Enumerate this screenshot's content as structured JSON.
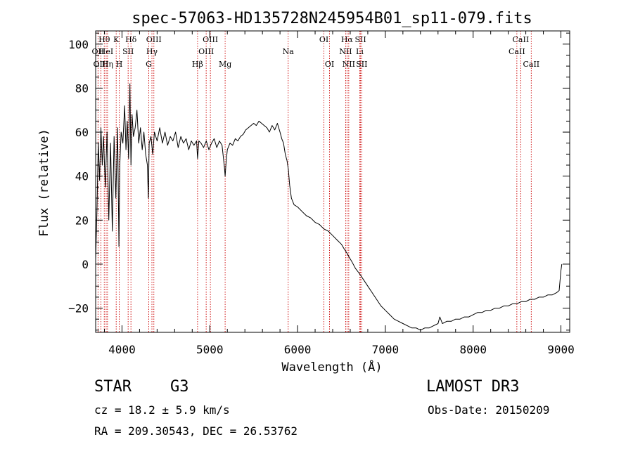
{
  "chart_data": {
    "type": "line",
    "title": "spec-57063-HD135728N245954B01_sp11-079.fits",
    "xlabel": "Wavelength (Å)",
    "ylabel": "Flux (relative)",
    "xlim": [
      3700,
      9100
    ],
    "ylim": [
      -31,
      106
    ],
    "xticks": [
      4000,
      5000,
      6000,
      7000,
      8000,
      9000
    ],
    "xticks_minor_step": 200,
    "yticks": [
      -20,
      0,
      20,
      40,
      60,
      80,
      100
    ],
    "yticks_minor_step": 5,
    "series": [
      {
        "name": "spectrum",
        "points": [
          [
            3700,
            2
          ],
          [
            3715,
            25
          ],
          [
            3730,
            55
          ],
          [
            3745,
            38
          ],
          [
            3760,
            62
          ],
          [
            3775,
            45
          ],
          [
            3790,
            58
          ],
          [
            3810,
            35
          ],
          [
            3830,
            60
          ],
          [
            3850,
            20
          ],
          [
            3870,
            55
          ],
          [
            3890,
            15
          ],
          [
            3910,
            58
          ],
          [
            3930,
            30
          ],
          [
            3950,
            62
          ],
          [
            3965,
            8
          ],
          [
            3975,
            45
          ],
          [
            3990,
            60
          ],
          [
            4010,
            55
          ],
          [
            4030,
            72
          ],
          [
            4045,
            52
          ],
          [
            4060,
            65
          ],
          [
            4075,
            48
          ],
          [
            4090,
            82
          ],
          [
            4102,
            45
          ],
          [
            4115,
            68
          ],
          [
            4130,
            58
          ],
          [
            4150,
            62
          ],
          [
            4170,
            70
          ],
          [
            4190,
            55
          ],
          [
            4210,
            62
          ],
          [
            4230,
            52
          ],
          [
            4250,
            60
          ],
          [
            4270,
            50
          ],
          [
            4290,
            45
          ],
          [
            4300,
            30
          ],
          [
            4310,
            55
          ],
          [
            4330,
            58
          ],
          [
            4350,
            50
          ],
          [
            4370,
            60
          ],
          [
            4400,
            56
          ],
          [
            4430,
            62
          ],
          [
            4460,
            55
          ],
          [
            4490,
            60
          ],
          [
            4520,
            54
          ],
          [
            4550,
            58
          ],
          [
            4580,
            56
          ],
          [
            4610,
            60
          ],
          [
            4640,
            53
          ],
          [
            4670,
            58
          ],
          [
            4700,
            55
          ],
          [
            4730,
            57
          ],
          [
            4760,
            52
          ],
          [
            4790,
            56
          ],
          [
            4820,
            54
          ],
          [
            4850,
            56
          ],
          [
            4861,
            48
          ],
          [
            4875,
            56
          ],
          [
            4900,
            55
          ],
          [
            4930,
            53
          ],
          [
            4960,
            56
          ],
          [
            4990,
            52
          ],
          [
            5020,
            55
          ],
          [
            5050,
            57
          ],
          [
            5080,
            53
          ],
          [
            5110,
            56
          ],
          [
            5140,
            54
          ],
          [
            5167,
            44
          ],
          [
            5175,
            40
          ],
          [
            5185,
            46
          ],
          [
            5200,
            52
          ],
          [
            5230,
            55
          ],
          [
            5260,
            54
          ],
          [
            5290,
            57
          ],
          [
            5320,
            56
          ],
          [
            5350,
            58
          ],
          [
            5380,
            59
          ],
          [
            5410,
            61
          ],
          [
            5440,
            62
          ],
          [
            5470,
            63
          ],
          [
            5500,
            64
          ],
          [
            5530,
            63
          ],
          [
            5560,
            65
          ],
          [
            5590,
            64
          ],
          [
            5620,
            63
          ],
          [
            5650,
            62
          ],
          [
            5680,
            60
          ],
          [
            5710,
            63
          ],
          [
            5740,
            61
          ],
          [
            5770,
            64
          ],
          [
            5800,
            60
          ],
          [
            5820,
            57
          ],
          [
            5840,
            55
          ],
          [
            5860,
            50
          ],
          [
            5880,
            47
          ],
          [
            5895,
            43
          ],
          [
            5910,
            36
          ],
          [
            5930,
            30
          ],
          [
            5960,
            27
          ],
          [
            6000,
            26
          ],
          [
            6050,
            24
          ],
          [
            6100,
            22
          ],
          [
            6150,
            21
          ],
          [
            6200,
            19
          ],
          [
            6250,
            18
          ],
          [
            6300,
            16
          ],
          [
            6350,
            15
          ],
          [
            6400,
            13
          ],
          [
            6450,
            11
          ],
          [
            6500,
            9
          ],
          [
            6530,
            7
          ],
          [
            6563,
            5
          ],
          [
            6590,
            3
          ],
          [
            6620,
            1
          ],
          [
            6660,
            -2
          ],
          [
            6700,
            -4
          ],
          [
            6750,
            -7
          ],
          [
            6800,
            -10
          ],
          [
            6850,
            -13
          ],
          [
            6900,
            -16
          ],
          [
            6950,
            -19
          ],
          [
            7000,
            -21
          ],
          [
            7050,
            -23
          ],
          [
            7100,
            -25
          ],
          [
            7150,
            -26
          ],
          [
            7200,
            -27
          ],
          [
            7250,
            -28
          ],
          [
            7300,
            -29
          ],
          [
            7350,
            -29
          ],
          [
            7400,
            -30
          ],
          [
            7450,
            -29
          ],
          [
            7500,
            -29
          ],
          [
            7550,
            -28
          ],
          [
            7600,
            -27
          ],
          [
            7620,
            -24
          ],
          [
            7650,
            -27
          ],
          [
            7700,
            -26
          ],
          [
            7750,
            -26
          ],
          [
            7800,
            -25
          ],
          [
            7850,
            -25
          ],
          [
            7900,
            -24
          ],
          [
            7950,
            -24
          ],
          [
            8000,
            -23
          ],
          [
            8050,
            -22
          ],
          [
            8100,
            -22
          ],
          [
            8150,
            -21
          ],
          [
            8200,
            -21
          ],
          [
            8250,
            -20
          ],
          [
            8300,
            -20
          ],
          [
            8350,
            -19
          ],
          [
            8400,
            -19
          ],
          [
            8450,
            -18
          ],
          [
            8500,
            -18
          ],
          [
            8550,
            -17
          ],
          [
            8600,
            -17
          ],
          [
            8650,
            -16
          ],
          [
            8700,
            -16
          ],
          [
            8750,
            -15
          ],
          [
            8800,
            -15
          ],
          [
            8850,
            -14
          ],
          [
            8900,
            -14
          ],
          [
            8950,
            -13
          ],
          [
            8980,
            -12
          ],
          [
            9000,
            -3
          ],
          [
            9010,
            0
          ]
        ]
      }
    ],
    "line_markers": [
      {
        "label": "OII",
        "x": 3727,
        "row": 1
      },
      {
        "label": "OIII",
        "x": 3760,
        "row": 2
      },
      {
        "label": "Hθ",
        "x": 3798,
        "row": 0
      },
      {
        "label": "HeI",
        "x": 3820,
        "row": 1
      },
      {
        "label": "Hη",
        "x": 3835,
        "row": 2
      },
      {
        "label": "K",
        "x": 3934,
        "row": 0
      },
      {
        "label": "H",
        "x": 3969,
        "row": 2
      },
      {
        "label": "SII",
        "x": 4070,
        "row": 1
      },
      {
        "label": "Hδ",
        "x": 4102,
        "row": 0
      },
      {
        "label": "OIII",
        "x": 4363,
        "row": 0
      },
      {
        "label": "Hγ",
        "x": 4341,
        "row": 1
      },
      {
        "label": "G",
        "x": 4305,
        "row": 2
      },
      {
        "label": "Hβ",
        "x": 4861,
        "row": 2
      },
      {
        "label": "OIII",
        "x": 5007,
        "row": 0
      },
      {
        "label": "OIII",
        "x": 4959,
        "row": 1
      },
      {
        "label": "Mg",
        "x": 5175,
        "row": 2
      },
      {
        "label": "Na",
        "x": 5893,
        "row": 1
      },
      {
        "label": "OI",
        "x": 6300,
        "row": 0
      },
      {
        "label": "OI",
        "x": 6364,
        "row": 2
      },
      {
        "label": "Hα",
        "x": 6563,
        "row": 0
      },
      {
        "label": "NII",
        "x": 6548,
        "row": 1
      },
      {
        "label": "NII",
        "x": 6583,
        "row": 2
      },
      {
        "label": "SII",
        "x": 6717,
        "row": 0
      },
      {
        "label": "Li",
        "x": 6708,
        "row": 1
      },
      {
        "label": "SII",
        "x": 6731,
        "row": 2
      },
      {
        "label": "CaII",
        "x": 8542,
        "row": 0
      },
      {
        "label": "CaII",
        "x": 8498,
        "row": 1
      },
      {
        "label": "CaII",
        "x": 8662,
        "row": 2
      }
    ],
    "colors": {
      "spectrum": "#000000",
      "markers": "#cc0000",
      "axes": "#000000"
    }
  },
  "info": {
    "object_type": "STAR",
    "subclass": "G3",
    "survey": "LAMOST DR3",
    "cz": "cz = 18.2 ± 5.9 km/s",
    "obs_date": "Obs-Date: 20150209",
    "radec": "RA = 209.30543, DEC =  26.53762"
  }
}
